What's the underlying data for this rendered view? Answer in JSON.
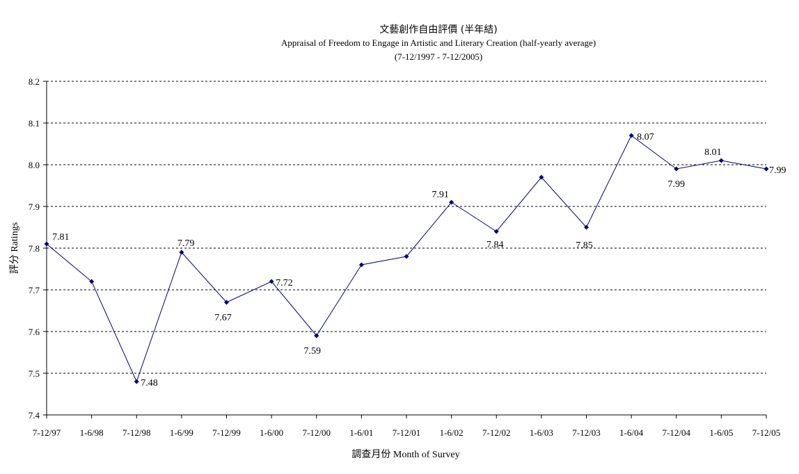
{
  "chart_data": {
    "type": "line",
    "title": "文藝創作自由評價 (半年結)",
    "subtitle": "Appraisal of Freedom to Engage in Artistic and Literary Creation (half-yearly average)",
    "period": "(7-12/1997 - 7-12/2005)",
    "xlabel": "調查月份 Month of Survey",
    "ylabel": "評分 Ratings",
    "ylim": [
      7.4,
      8.2
    ],
    "yticks": [
      "7.4",
      "7.5",
      "7.6",
      "7.7",
      "7.8",
      "7.9",
      "8.0",
      "8.1",
      "8.2"
    ],
    "grid": true,
    "categories": [
      "7-12/97",
      "1-6/98",
      "7-12/98",
      "1-6/99",
      "7-12/99",
      "1-6/00",
      "7-12/00",
      "1-6/01",
      "7-12/01",
      "1-6/02",
      "7-12/02",
      "1-6/03",
      "7-12/03",
      "1-6/04",
      "7-12/04",
      "1-6/05",
      "7-12/05"
    ],
    "values": [
      7.81,
      7.72,
      7.48,
      7.79,
      7.67,
      7.72,
      7.59,
      7.76,
      7.78,
      7.91,
      7.84,
      7.97,
      7.85,
      8.07,
      7.99,
      8.01,
      7.99
    ],
    "data_labels": [
      "7.81",
      null,
      "7.48",
      "7.79",
      "7.67",
      "7.72",
      "7.59",
      null,
      null,
      "7.91",
      "7.84",
      null,
      "7.85",
      "8.07",
      "7.99",
      "8.01",
      "7.99"
    ],
    "line_color": "#000080"
  }
}
